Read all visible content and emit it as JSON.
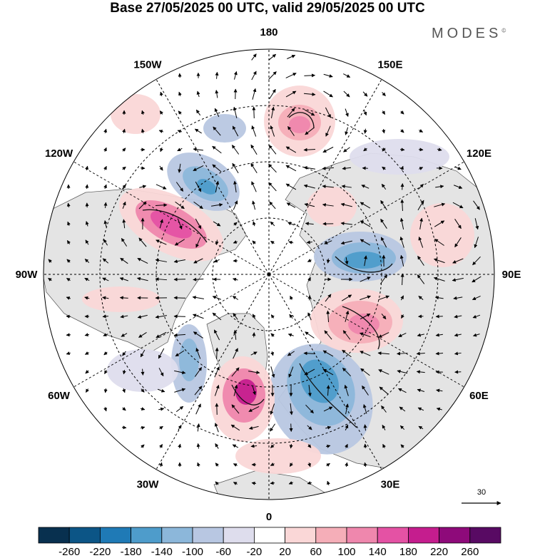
{
  "title": "Base 27/05/2025 00 UTC, valid 29/05/2025 00 UTC",
  "brand": "MODES",
  "brand_mark": "©",
  "map": {
    "projection": "north-polar-stereographic",
    "longitude_labels": [
      {
        "text": "180",
        "lon": 180
      },
      {
        "text": "150E",
        "lon": 150
      },
      {
        "text": "120E",
        "lon": 120
      },
      {
        "text": "90E",
        "lon": 90
      },
      {
        "text": "60E",
        "lon": 60
      },
      {
        "text": "30E",
        "lon": 30
      },
      {
        "text": "0",
        "lon": 0
      },
      {
        "text": "30W",
        "lon": -30
      },
      {
        "text": "60W",
        "lon": -60
      },
      {
        "text": "90W",
        "lon": -90
      },
      {
        "text": "120W",
        "lon": -120
      },
      {
        "text": "150W",
        "lon": -150
      }
    ],
    "reference_vector": "30",
    "colors": {
      "land": "#e6e6e6",
      "ocean": "#ffffff",
      "neg": [
        "#08304f",
        "#0c5586",
        "#1f7ab6",
        "#4e9ccb",
        "#8cb7da",
        "#b8c7e2",
        "#dedded"
      ],
      "pos": [
        "#fad7d7",
        "#f5aeb8",
        "#ef87ad",
        "#e452a4",
        "#c51d8e",
        "#8e0a7a",
        "#580a63"
      ]
    }
  },
  "colorbar": {
    "labels": [
      "-260",
      "-220",
      "-180",
      "-140",
      "-100",
      "-60",
      "-20",
      "20",
      "60",
      "100",
      "140",
      "180",
      "220",
      "260"
    ],
    "colors": [
      "#08304f",
      "#0c5586",
      "#1f7ab6",
      "#4e9ccb",
      "#8cb7da",
      "#b8c7e2",
      "#dedded",
      "#ffffff",
      "#fad7d7",
      "#f5aeb8",
      "#ef87ad",
      "#e452a4",
      "#c51d8e",
      "#8e0a7a",
      "#580a63"
    ]
  }
}
